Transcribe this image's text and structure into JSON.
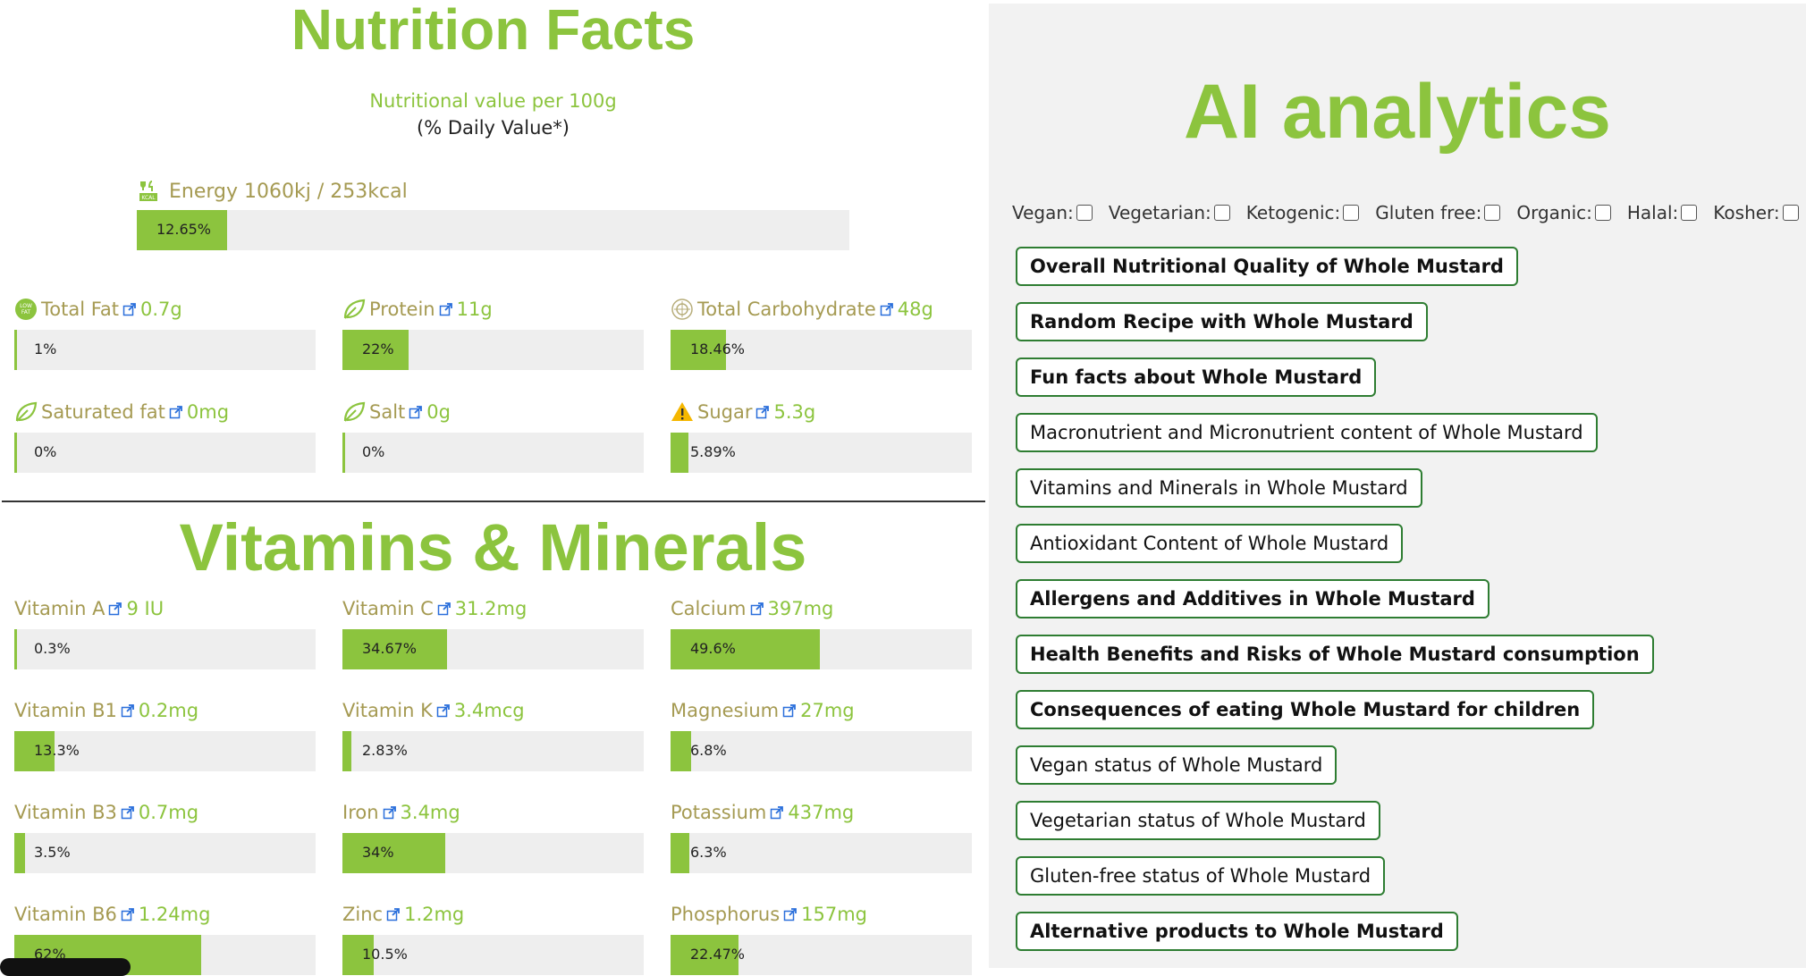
{
  "nutrition": {
    "title": "Nutrition Facts",
    "per_100g": "Nutritional value per 100g",
    "daily_value": "(% Daily Value*)",
    "energy": {
      "label": "Energy 1060kj / 253kcal",
      "percent": "12.65%",
      "fill": 0.1265
    },
    "items": [
      {
        "name": "Total Fat",
        "amount": "0.7g",
        "percent": "1%",
        "fill": 0.01,
        "icon": "low-fat-icon"
      },
      {
        "name": "Protein",
        "amount": "11g",
        "percent": "22%",
        "fill": 0.22,
        "icon": "leaf-icon"
      },
      {
        "name": "Total Carbohydrate",
        "amount": "48g",
        "percent": "18.46%",
        "fill": 0.1846,
        "icon": "grain-icon"
      },
      {
        "name": "Saturated fat",
        "amount": "0mg",
        "percent": "0%",
        "fill": 0.0,
        "icon": "leaf-icon"
      },
      {
        "name": "Salt",
        "amount": "0g",
        "percent": "0%",
        "fill": 0.0,
        "icon": "leaf-icon"
      },
      {
        "name": "Sugar",
        "amount": "5.3g",
        "percent": "5.89%",
        "fill": 0.0589,
        "icon": "warning-icon"
      }
    ]
  },
  "vitamins": {
    "title": "Vitamins & Minerals",
    "items": [
      {
        "name": "Vitamin A",
        "amount": "9 IU",
        "percent": "0.3%",
        "fill": 0.003
      },
      {
        "name": "Vitamin C",
        "amount": "31.2mg",
        "percent": "34.67%",
        "fill": 0.3467
      },
      {
        "name": "Calcium",
        "amount": "397mg",
        "percent": "49.6%",
        "fill": 0.496
      },
      {
        "name": "Vitamin B1",
        "amount": "0.2mg",
        "percent": "13.3%",
        "fill": 0.133
      },
      {
        "name": "Vitamin K",
        "amount": "3.4mcg",
        "percent": "2.83%",
        "fill": 0.0283
      },
      {
        "name": "Magnesium",
        "amount": "27mg",
        "percent": "6.8%",
        "fill": 0.068
      },
      {
        "name": "Vitamin B3",
        "amount": "0.7mg",
        "percent": "3.5%",
        "fill": 0.035
      },
      {
        "name": "Iron",
        "amount": "3.4mg",
        "percent": "34%",
        "fill": 0.34
      },
      {
        "name": "Potassium",
        "amount": "437mg",
        "percent": "6.3%",
        "fill": 0.063
      },
      {
        "name": "Vitamin B6",
        "amount": "1.24mg",
        "percent": "62%",
        "fill": 0.62
      },
      {
        "name": "Zinc",
        "amount": "1.2mg",
        "percent": "10.5%",
        "fill": 0.105
      },
      {
        "name": "Phosphorus",
        "amount": "157mg",
        "percent": "22.47%",
        "fill": 0.2247
      }
    ]
  },
  "ai": {
    "title": "AI analytics",
    "diets": [
      "Vegan:",
      "Vegetarian:",
      "Ketogenic:",
      "Gluten free:",
      "Organic:",
      "Halal:",
      "Kosher:"
    ],
    "buttons": [
      {
        "label": "Overall Nutritional Quality of Whole Mustard",
        "bold": true
      },
      {
        "label": "Random Recipe with Whole Mustard",
        "bold": true
      },
      {
        "label": "Fun facts about Whole Mustard",
        "bold": true
      },
      {
        "label": "Macronutrient and Micronutrient content of Whole Mustard",
        "bold": false
      },
      {
        "label": "Vitamins and Minerals in Whole Mustard",
        "bold": false
      },
      {
        "label": "Antioxidant Content of Whole Mustard",
        "bold": false
      },
      {
        "label": "Allergens and Additives in Whole Mustard",
        "bold": true
      },
      {
        "label": "Health Benefits and Risks of Whole Mustard consumption",
        "bold": true
      },
      {
        "label": "Consequences of eating Whole Mustard for children",
        "bold": true
      },
      {
        "label": "Vegan status of Whole Mustard",
        "bold": false
      },
      {
        "label": "Vegetarian status of Whole Mustard",
        "bold": false
      },
      {
        "label": "Gluten-free status of Whole Mustard",
        "bold": false
      },
      {
        "label": "Alternative products to Whole Mustard",
        "bold": true
      }
    ]
  },
  "colors": {
    "accent": "#8cc43e",
    "label": "#a59a52",
    "bar_bg": "#eeeeee",
    "button_border": "#2e7d32"
  }
}
